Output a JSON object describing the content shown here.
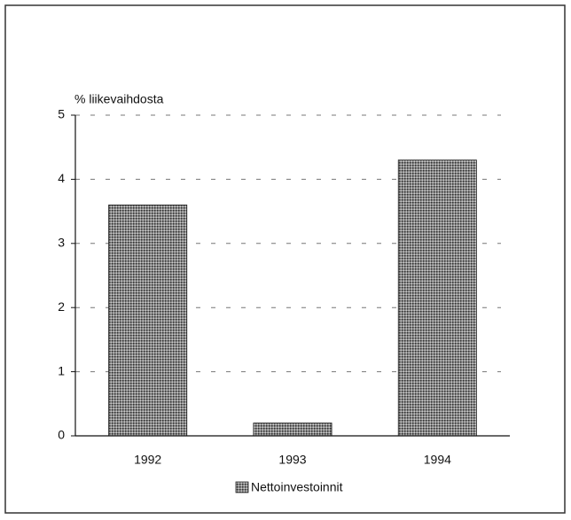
{
  "chart_data": {
    "type": "bar",
    "y_label": "% liikevaihdosta",
    "categories": [
      "1992",
      "1993",
      "1994"
    ],
    "values": [
      3.6,
      0.2,
      4.3
    ],
    "series_name": "Nettoinvestoinnit",
    "color": "#8a8a8a",
    "ylim": [
      0,
      5
    ],
    "yticks": [
      0,
      1,
      2,
      3,
      4,
      5
    ],
    "grid": true,
    "legend": "bottom"
  }
}
